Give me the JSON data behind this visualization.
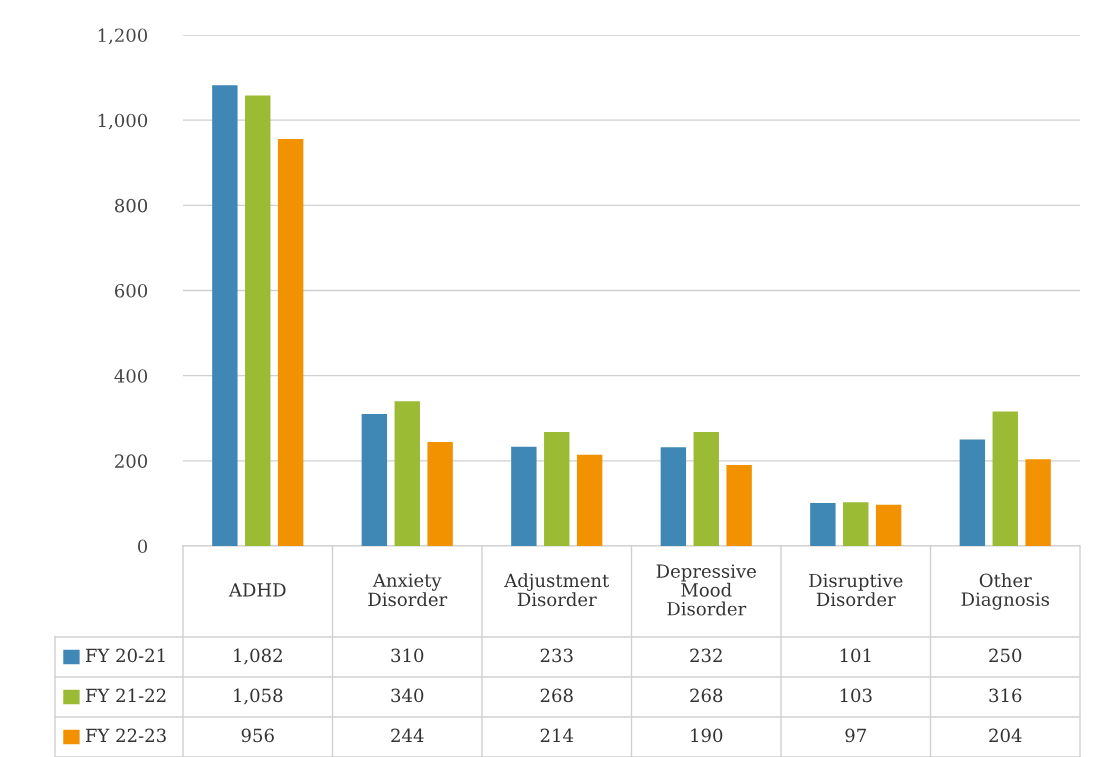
{
  "chart_data": {
    "type": "bar",
    "categories": [
      "ADHD",
      "Anxiety Disorder",
      "Adjustment Disorder",
      "Depressive Mood Disorder",
      "Disruptive Disorder",
      "Other Diagnosis"
    ],
    "series": [
      {
        "name": "FY 20-21",
        "color": "#3f88b5",
        "values": [
          1082,
          310,
          233,
          232,
          101,
          250
        ],
        "value_labels": [
          "1,082",
          "310",
          "233",
          "232",
          "101",
          "250"
        ]
      },
      {
        "name": "FY 21-22",
        "color": "#9bbb34",
        "values": [
          1058,
          340,
          268,
          268,
          103,
          316
        ],
        "value_labels": [
          "1,058",
          "340",
          "268",
          "268",
          "103",
          "316"
        ]
      },
      {
        "name": "FY 22-23",
        "color": "#f39200",
        "values": [
          956,
          244,
          214,
          190,
          97,
          204
        ],
        "value_labels": [
          "956",
          "244",
          "214",
          "190",
          "97",
          "204"
        ]
      }
    ],
    "ylim": [
      0,
      1200
    ],
    "yticks": [
      {
        "value": 0,
        "label": "0"
      },
      {
        "value": 200,
        "label": "200"
      },
      {
        "value": 400,
        "label": "400"
      },
      {
        "value": 600,
        "label": "600"
      },
      {
        "value": 800,
        "label": "800"
      },
      {
        "value": 1000,
        "label": "1,000"
      },
      {
        "value": 1200,
        "label": "1,200"
      }
    ],
    "grid": "y",
    "legend": "bottom left"
  }
}
